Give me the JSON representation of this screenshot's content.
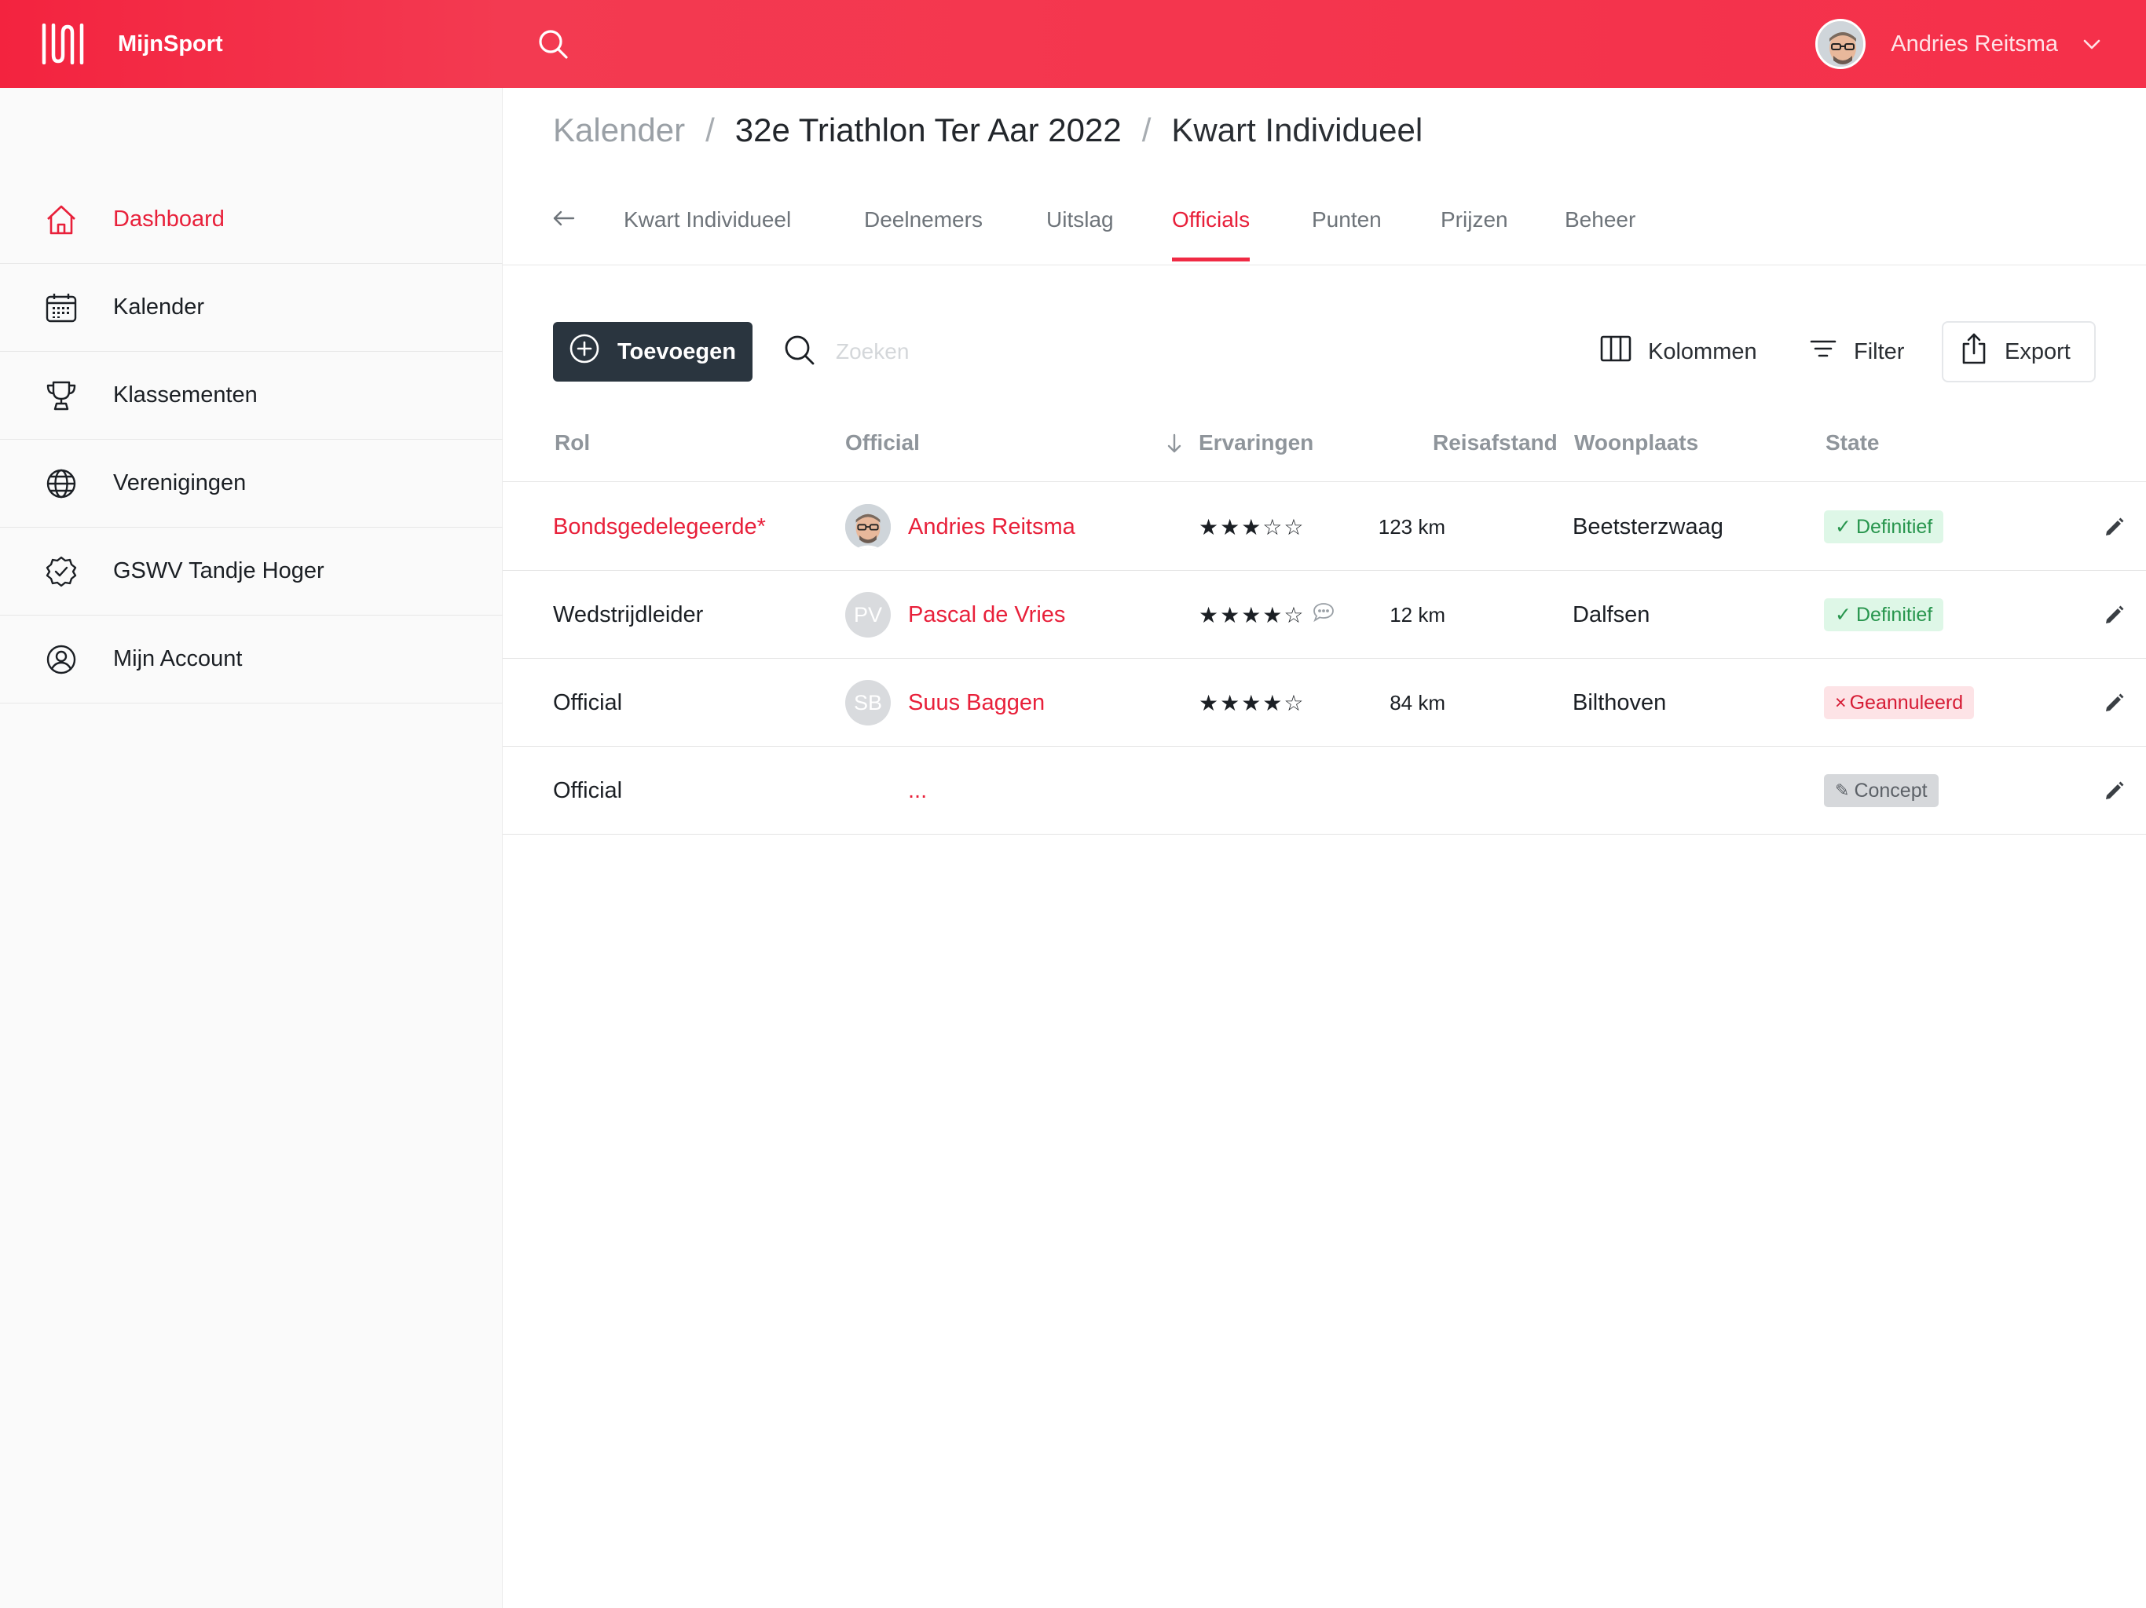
{
  "app": {
    "name": "MijnSport"
  },
  "user": {
    "name": "Andries Reitsma"
  },
  "sidebar": {
    "items": [
      {
        "label": "Dashboard",
        "icon": "home-icon",
        "active": true
      },
      {
        "label": "Kalender",
        "icon": "calendar-icon"
      },
      {
        "label": "Klassementen",
        "icon": "trophy-icon"
      },
      {
        "label": "Verenigingen",
        "icon": "globe-icon"
      },
      {
        "label": "GSWV Tandje Hoger",
        "icon": "verified-badge-icon"
      },
      {
        "label": "Mijn Account",
        "icon": "user-circle-icon"
      }
    ]
  },
  "breadcrumb": {
    "root": "Kalender",
    "separator": "/",
    "event": "32e Triathlon Ter Aar 2022",
    "current": "Kwart Individueel"
  },
  "tabs": [
    {
      "label": "Kwart Individueel"
    },
    {
      "label": "Deelnemers"
    },
    {
      "label": "Uitslag"
    },
    {
      "label": "Officials",
      "active": true
    },
    {
      "label": "Punten"
    },
    {
      "label": "Prijzen"
    },
    {
      "label": "Beheer"
    }
  ],
  "toolbar": {
    "add_label": "Toevoegen",
    "search_placeholder": "Zoeken",
    "columns_label": "Kolommen",
    "filter_label": "Filter",
    "export_label": "Export"
  },
  "table": {
    "columns": {
      "rol": "Rol",
      "official": "Official",
      "ervaringen": "Ervaringen",
      "reisafstand": "Reisafstand",
      "woonplaats": "Woonplaats",
      "state": "State"
    },
    "rows": [
      {
        "rol": "Bondsgedelegeerde*",
        "avatar": "photo",
        "official": "Andries Reitsma",
        "stars": "★★★☆☆",
        "rating": 3,
        "comment": false,
        "reisafstand": "123 km",
        "woonplaats": "Beetsterzwaag",
        "state": "Definitief",
        "state_icon": "✓",
        "state_type": "definitief"
      },
      {
        "rol": "Wedstrijdleider",
        "avatar": "PV",
        "official": "Pascal de Vries",
        "stars": "★★★★☆",
        "rating": 4,
        "comment": true,
        "reisafstand": "12 km",
        "woonplaats": "Dalfsen",
        "state": "Definitief",
        "state_icon": "✓",
        "state_type": "definitief"
      },
      {
        "rol": "Official",
        "avatar": "SB",
        "official": "Suus Baggen",
        "stars": "★★★★☆",
        "rating": 4,
        "comment": false,
        "reisafstand": "84 km",
        "woonplaats": "Bilthoven",
        "state": "Geannuleerd",
        "state_icon": "×",
        "state_type": "geannuleerd"
      },
      {
        "rol": "Official",
        "avatar": "",
        "official": "...",
        "stars": "",
        "rating": 0,
        "comment": false,
        "reisafstand": "",
        "woonplaats": "",
        "state": "Concept",
        "state_icon": "✎",
        "state_type": "concept"
      }
    ]
  },
  "colors": {
    "accent": "#F0243E",
    "dark_button": "#2A353F",
    "success_bg": "#DEF7E7",
    "danger_bg": "#FDE3E6"
  }
}
